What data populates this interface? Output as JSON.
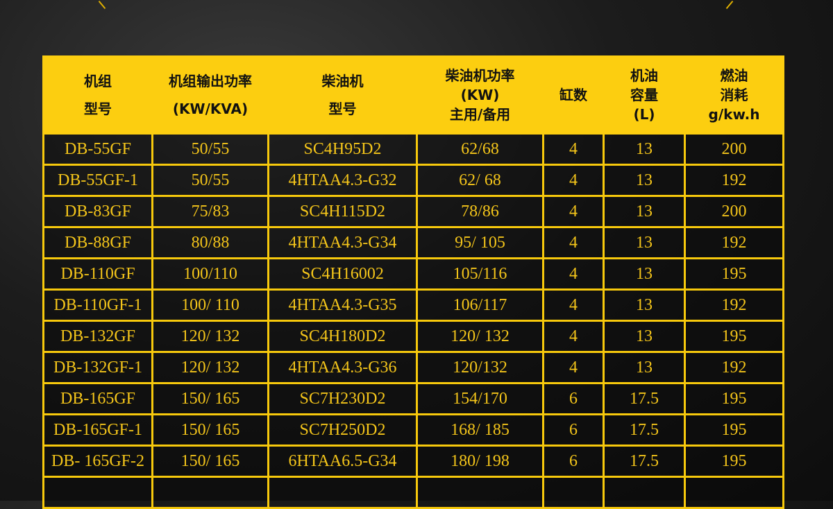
{
  "table": {
    "headers": [
      [
        "机组",
        "型号"
      ],
      [
        "机组输出功率",
        "(KW/KVA)"
      ],
      [
        "柴油机",
        "型号"
      ],
      [
        "柴油机功率",
        "(KW)",
        "主用/备用"
      ],
      [
        "缸数"
      ],
      [
        "机油",
        "容量",
        "(L)"
      ],
      [
        "燃油",
        "消耗",
        "g/kw.h"
      ]
    ],
    "rows": [
      [
        "DB-55GF",
        "50/55",
        "SC4H95D2",
        "62/68",
        "4",
        "13",
        "200"
      ],
      [
        "DB-55GF-1",
        "50/55",
        "4HTAA4.3-G32",
        "62/ 68",
        "4",
        "13",
        "192"
      ],
      [
        "DB-83GF",
        "75/83",
        "SC4H115D2",
        "78/86",
        "4",
        "13",
        "200"
      ],
      [
        "DB-88GF",
        "80/88",
        "4HTAA4.3-G34",
        "95/ 105",
        "4",
        "13",
        "192"
      ],
      [
        "DB-110GF",
        "100/110",
        "SC4H16002",
        "105/116",
        "4",
        "13",
        "195"
      ],
      [
        "DB-110GF-1",
        "100/ 110",
        "4HTAA4.3-G35",
        "106/117",
        "4",
        "13",
        "192"
      ],
      [
        "DB-132GF",
        "120/ 132",
        "SC4H180D2",
        "120/ 132",
        "4",
        "13",
        "195"
      ],
      [
        "DB-132GF-1",
        "120/ 132",
        "4HTAA4.3-G36",
        "120/132",
        "4",
        "13",
        "192"
      ],
      [
        "DB-165GF",
        "150/ 165",
        "SC7H230D2",
        "154/170",
        "6",
        "17.5",
        "195"
      ],
      [
        "DB-165GF-1",
        "150/ 165",
        "SC7H250D2",
        "168/ 185",
        "6",
        "17.5",
        "195"
      ],
      [
        "DB- 165GF-2",
        "150/ 165",
        "6HTAA6.5-G34",
        "180/ 198",
        "6",
        "17.5",
        "195"
      ],
      [
        "",
        "",
        "",
        "",
        "",
        "",
        ""
      ]
    ]
  },
  "colors": {
    "accent": "#fcce10",
    "text": "#f4c51a",
    "background": "#1a1a1a"
  }
}
